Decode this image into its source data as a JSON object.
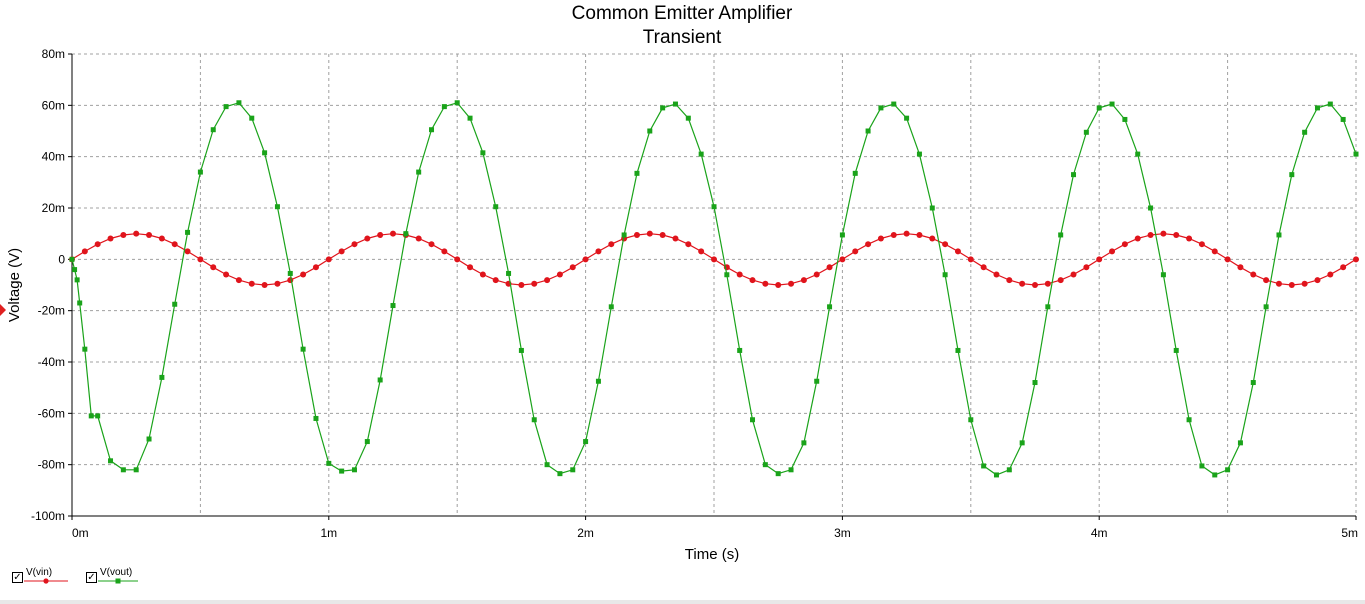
{
  "colors": {
    "vin": "#e0141c",
    "vout": "#1aa31a",
    "grid": "#a0a0a0",
    "axis": "#000000"
  },
  "chart_data": {
    "type": "line",
    "title": "Common Emitter Amplifier",
    "subtitle": "Transient",
    "xlabel": "Time (s)",
    "ylabel": "Voltage (V)",
    "xlim": [
      0,
      5
    ],
    "ylim": [
      -100,
      80
    ],
    "x_unit": "ms",
    "y_unit": "mV",
    "x_ticks": [
      0,
      1,
      2,
      3,
      4,
      5
    ],
    "x_tick_labels": [
      "0m",
      "1m",
      "2m",
      "3m",
      "4m",
      "5m"
    ],
    "y_ticks": [
      80,
      60,
      40,
      20,
      0,
      -20,
      -40,
      -60,
      -80,
      -100
    ],
    "y_tick_labels": [
      "80m",
      "60m",
      "40m",
      "20m",
      "0",
      "-20m",
      "-40m",
      "-60m",
      "-80m",
      "-100m"
    ],
    "grid": true,
    "legend_position": "bottom-left",
    "series": [
      {
        "name": "V(vin)",
        "x": [
          0,
          0.05,
          0.1,
          0.15,
          0.2,
          0.25,
          0.3,
          0.35,
          0.4,
          0.45,
          0.5,
          0.55,
          0.6,
          0.65,
          0.7,
          0.75,
          0.8,
          0.85,
          0.9,
          0.95,
          1.0,
          1.05,
          1.1,
          1.15,
          1.2,
          1.25,
          1.3,
          1.35,
          1.4,
          1.45,
          1.5,
          1.55,
          1.6,
          1.65,
          1.7,
          1.75,
          1.8,
          1.85,
          1.9,
          1.95,
          2.0,
          2.05,
          2.1,
          2.15,
          2.2,
          2.25,
          2.3,
          2.35,
          2.4,
          2.45,
          2.5,
          2.55,
          2.6,
          2.65,
          2.7,
          2.75,
          2.8,
          2.85,
          2.9,
          2.95,
          3.0,
          3.05,
          3.1,
          3.15,
          3.2,
          3.25,
          3.3,
          3.35,
          3.4,
          3.45,
          3.5,
          3.55,
          3.6,
          3.65,
          3.7,
          3.75,
          3.8,
          3.85,
          3.9,
          3.95,
          4.0,
          4.05,
          4.1,
          4.15,
          4.2,
          4.25,
          4.3,
          4.35,
          4.4,
          4.45,
          4.5,
          4.55,
          4.6,
          4.65,
          4.7,
          4.75,
          4.8,
          4.85,
          4.9,
          4.95,
          5.0
        ],
        "y": [
          0,
          3.1,
          5.9,
          8.1,
          9.5,
          10,
          9.5,
          8.1,
          5.9,
          3.1,
          0,
          -3.1,
          -5.9,
          -8.1,
          -9.5,
          -10,
          -9.5,
          -8.1,
          -5.9,
          -3.1,
          0,
          3.1,
          5.9,
          8.1,
          9.5,
          10,
          9.5,
          8.1,
          5.9,
          3.1,
          0,
          -3.1,
          -5.9,
          -8.1,
          -9.5,
          -10,
          -9.5,
          -8.1,
          -5.9,
          -3.1,
          0,
          3.1,
          5.9,
          8.1,
          9.5,
          10,
          9.5,
          8.1,
          5.9,
          3.1,
          0,
          -3.1,
          -5.9,
          -8.1,
          -9.5,
          -10,
          -9.5,
          -8.1,
          -5.9,
          -3.1,
          0,
          3.1,
          5.9,
          8.1,
          9.5,
          10,
          9.5,
          8.1,
          5.9,
          3.1,
          0,
          -3.1,
          -5.9,
          -8.1,
          -9.5,
          -10,
          -9.5,
          -8.1,
          -5.9,
          -3.1,
          0,
          3.1,
          5.9,
          8.1,
          9.5,
          10,
          9.5,
          8.1,
          5.9,
          3.1,
          0,
          -3.1,
          -5.9,
          -8.1,
          -9.5,
          -10,
          -9.5,
          -8.1,
          -5.9,
          -3.1,
          0
        ]
      },
      {
        "name": "V(vout)",
        "x": [
          0,
          0.01,
          0.02,
          0.03,
          0.05,
          0.075,
          0.1,
          0.15,
          0.2,
          0.25,
          0.3,
          0.35,
          0.4,
          0.45,
          0.5,
          0.55,
          0.6,
          0.65,
          0.7,
          0.75,
          0.8,
          0.85,
          0.9,
          0.95,
          1.0,
          1.05,
          1.1,
          1.15,
          1.2,
          1.25,
          1.3,
          1.35,
          1.4,
          1.45,
          1.5,
          1.55,
          1.6,
          1.65,
          1.7,
          1.75,
          1.8,
          1.85,
          1.9,
          1.95,
          2.0,
          2.05,
          2.1,
          2.15,
          2.2,
          2.25,
          2.3,
          2.35,
          2.4,
          2.45,
          2.5,
          2.55,
          2.6,
          2.65,
          2.7,
          2.75,
          2.8,
          2.85,
          2.9,
          2.95,
          3.0,
          3.05,
          3.1,
          3.15,
          3.2,
          3.25,
          3.3,
          3.35,
          3.4,
          3.45,
          3.5,
          3.55,
          3.6,
          3.65,
          3.7,
          3.75,
          3.8,
          3.85,
          3.9,
          3.95,
          4.0,
          4.05,
          4.1,
          4.15,
          4.2,
          4.25,
          4.3,
          4.35,
          4.4,
          4.45,
          4.5,
          4.55,
          4.6,
          4.65,
          4.7,
          4.75,
          4.8,
          4.85,
          4.9,
          4.95,
          5.0
        ],
        "y": [
          0,
          -4,
          -8,
          -17,
          -35,
          -61,
          -61,
          -78.5,
          -82,
          -82,
          -70,
          -46,
          -17.5,
          10.5,
          34,
          50.5,
          59.5,
          61,
          55,
          41.5,
          20.5,
          -5.5,
          -35,
          -62,
          -79.5,
          -82.5,
          -82,
          -71,
          -47,
          -18,
          10,
          34,
          50.5,
          59.5,
          61,
          55,
          41.5,
          20.5,
          -5.5,
          -35.5,
          -62.5,
          -80,
          -83.5,
          -82,
          -71,
          -47.5,
          -18.5,
          9.5,
          33.5,
          50,
          59,
          60.5,
          55,
          41,
          20.5,
          -6,
          -35.5,
          -62.5,
          -80,
          -83.5,
          -82,
          -71.5,
          -47.5,
          -18.5,
          9.5,
          33.5,
          50,
          59,
          60.5,
          55,
          41,
          20,
          -6,
          -35.5,
          -62.5,
          -80.5,
          -84,
          -82,
          -71.5,
          -48,
          -18.5,
          9.5,
          33,
          49.5,
          59,
          60.5,
          54.5,
          41,
          20,
          -6,
          -35.5,
          -62.5,
          -80.5,
          -84,
          -82,
          -71.5,
          -48,
          -18.5,
          9.5,
          33,
          49.5,
          59,
          60.5,
          54.5,
          41
        ],
        "note_values": "shown"
      }
    ]
  },
  "legend": {
    "items": [
      {
        "label": "V(vin)",
        "checked": "✓"
      },
      {
        "label": "V(vout)",
        "checked": "✓"
      }
    ]
  }
}
